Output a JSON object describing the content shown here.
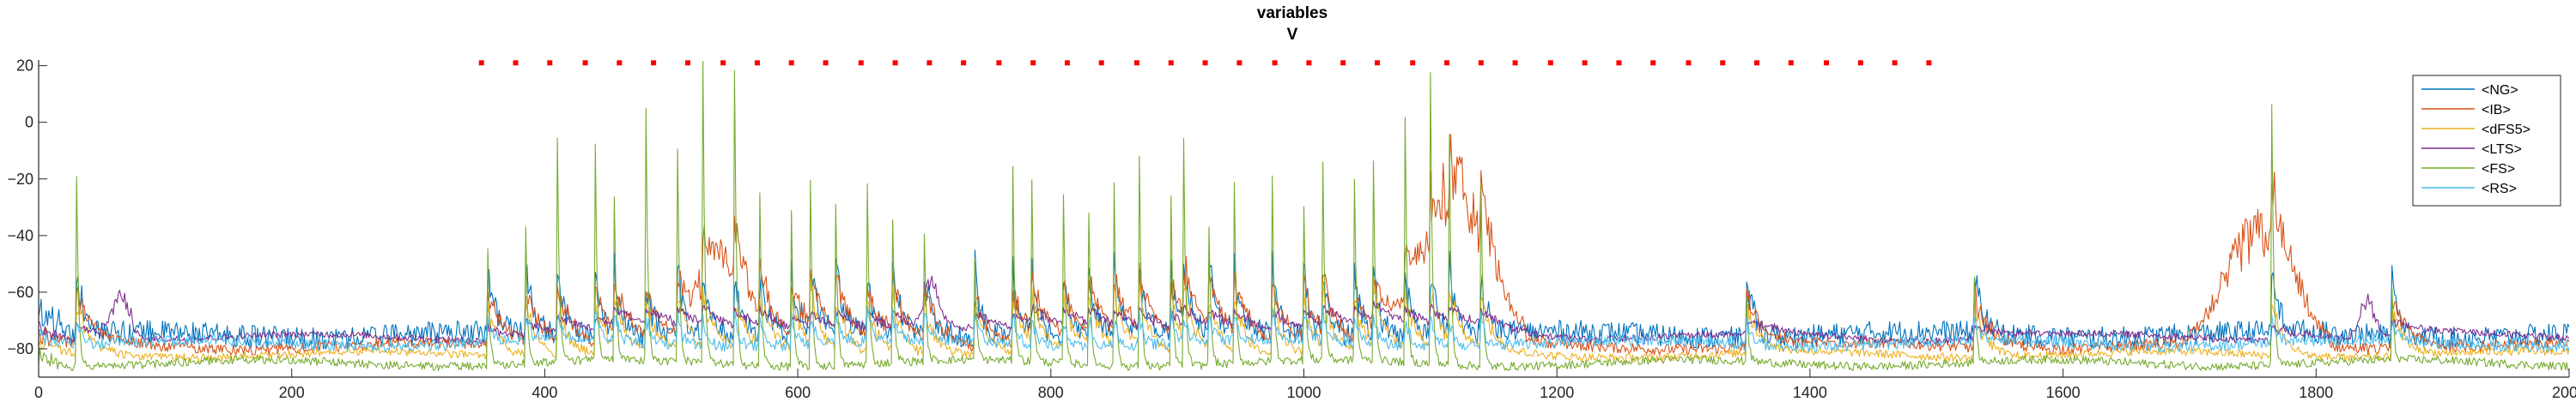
{
  "chart_data": {
    "type": "line",
    "title": [
      "variables",
      "V"
    ],
    "xlim": [
      0,
      2000
    ],
    "ylim": [
      -90,
      22
    ],
    "xticks": [
      0,
      200,
      400,
      600,
      800,
      1000,
      1200,
      1400,
      1600,
      1800,
      2000
    ],
    "yticks": [
      -80,
      -60,
      -40,
      -20,
      0,
      20
    ],
    "legend_position": "top-right",
    "series": [
      {
        "name": "<NG>",
        "color": "#0072bd",
        "baseline": -75,
        "noise": 4,
        "event_peak": -48,
        "event_width": 6
      },
      {
        "name": "<IB>",
        "color": "#d95319",
        "baseline": -79,
        "noise": 2,
        "event_peak": -57,
        "event_width": 14,
        "bursts": [
          {
            "center": 1120,
            "width": 35,
            "peak": -35
          },
          {
            "center": 1755,
            "width": 35,
            "peak": -40
          },
          {
            "center": 540,
            "width": 25,
            "peak": -55
          }
        ]
      },
      {
        "name": "<dFS5>",
        "color": "#edb120",
        "baseline": -82,
        "noise": 1.5,
        "event_peak": -60,
        "event_width": 10
      },
      {
        "name": "<LTS>",
        "color": "#7e2f8e",
        "baseline": -76,
        "noise": 1.2,
        "event_peak": -70,
        "event_width": 30,
        "bursts": [
          {
            "center": 65,
            "width": 10,
            "peak": -62
          },
          {
            "center": 705,
            "width": 8,
            "peak": -64
          },
          {
            "center": 1840,
            "width": 8,
            "peak": -63
          }
        ]
      },
      {
        "name": "<FS>",
        "color": "#77ac30",
        "baseline": -85,
        "noise": 1.5,
        "event_peak": 15,
        "event_width": 1.5
      },
      {
        "name": "<RS>",
        "color": "#4dbeee",
        "baseline": -78,
        "noise": 2,
        "event_peak": -66,
        "event_width": 4
      }
    ],
    "spike_times": [
      30,
      355,
      385,
      410,
      440,
      455,
      480,
      505,
      525,
      550,
      570,
      595,
      610,
      630,
      655,
      675,
      700,
      740,
      770,
      785,
      810,
      830,
      850,
      870,
      895,
      905,
      925,
      945,
      975,
      1000,
      1015,
      1040,
      1055,
      1080,
      1100,
      1115,
      1140,
      1350,
      1530,
      1765,
      1860
    ],
    "spike_heights": [
      -18,
      -45,
      -38,
      -5,
      -10,
      -28,
      5,
      -10,
      20,
      18,
      -25,
      -30,
      -20,
      -28,
      -22,
      -35,
      -40,
      -50,
      -18,
      -22,
      -25,
      -30,
      -20,
      -10,
      -25,
      -5,
      -35,
      -22,
      -20,
      -30,
      -15,
      -20,
      -15,
      0,
      17,
      -5,
      -20,
      -62,
      -55,
      8,
      -60
    ],
    "stimulus_marks": {
      "color": "#ff0000",
      "y": 21,
      "times": [
        350,
        377,
        404,
        432,
        459,
        486,
        513,
        541,
        568,
        595,
        622,
        650,
        677,
        704,
        731,
        759,
        786,
        813,
        840,
        868,
        895,
        922,
        949,
        977,
        1004,
        1031,
        1058,
        1086,
        1113,
        1140,
        1167,
        1195,
        1222,
        1249,
        1276,
        1304,
        1331,
        1358,
        1385,
        1413,
        1440,
        1467,
        1494
      ]
    },
    "legend_entries": [
      "<NG>",
      "<IB>",
      "<dFS5>",
      "<LTS>",
      "<FS>",
      "<RS>"
    ]
  }
}
